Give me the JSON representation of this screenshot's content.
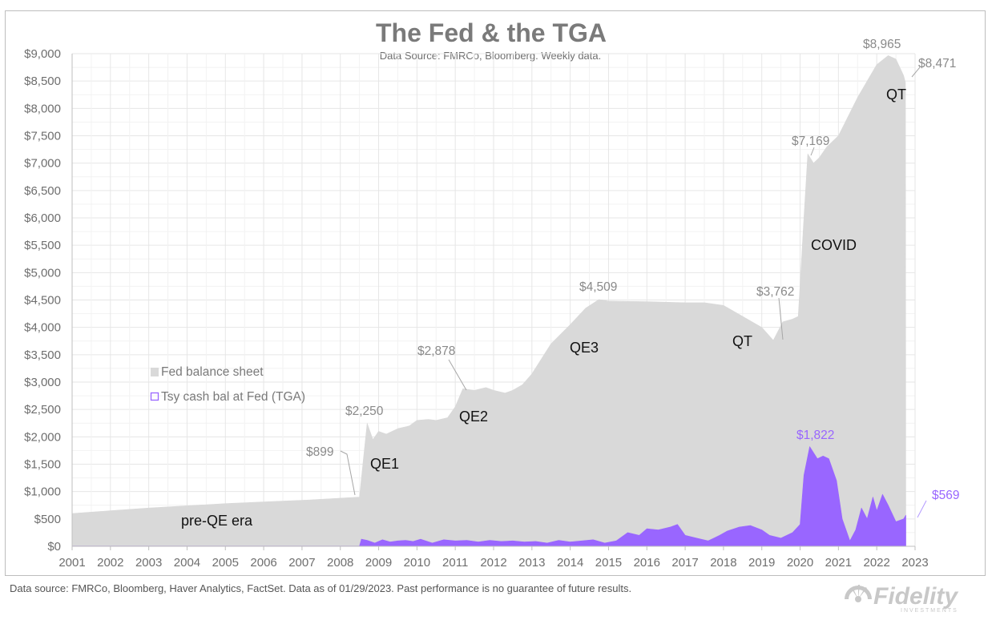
{
  "chart_data": {
    "type": "area",
    "title": "The Fed & the TGA",
    "subtitle": "Data Source: FMRCo, Bloomberg.   Weekly data.",
    "xlabel": "",
    "ylabel": "",
    "xlim": [
      2001,
      2023
    ],
    "ylim": [
      0,
      9000
    ],
    "x_ticks": [
      "2001",
      "2002",
      "2003",
      "2004",
      "2005",
      "2006",
      "2007",
      "2008",
      "2009",
      "2010",
      "2011",
      "2012",
      "2013",
      "2014",
      "2015",
      "2016",
      "2017",
      "2018",
      "2019",
      "2020",
      "2021",
      "2022",
      "2023"
    ],
    "y_ticks": [
      "$0",
      "$500",
      "$1,000",
      "$1,500",
      "$2,000",
      "$2,500",
      "$3,000",
      "$3,500",
      "$4,000",
      "$4,500",
      "$5,000",
      "$5,500",
      "$6,000",
      "$6,500",
      "$7,000",
      "$7,500",
      "$8,000",
      "$8,500",
      "$9,000"
    ],
    "grid": true,
    "legend_position": "center-left",
    "series": [
      {
        "name": "Fed balance sheet",
        "color": "#d9d9d9",
        "x": [
          2001.0,
          2002.0,
          2003.0,
          2004.0,
          2005.0,
          2006.0,
          2007.0,
          2008.0,
          2008.5,
          2008.7,
          2008.85,
          2009.0,
          2009.2,
          2009.5,
          2009.8,
          2010.0,
          2010.3,
          2010.5,
          2010.8,
          2011.0,
          2011.2,
          2011.5,
          2011.8,
          2012.0,
          2012.3,
          2012.5,
          2012.75,
          2013.0,
          2013.5,
          2014.0,
          2014.4,
          2014.75,
          2015.0,
          2016.0,
          2017.0,
          2017.5,
          2018.0,
          2018.5,
          2019.0,
          2019.3,
          2019.55,
          2019.8,
          2019.95,
          2020.1,
          2020.2,
          2020.35,
          2020.5,
          2020.7,
          2021.0,
          2021.5,
          2022.0,
          2022.3,
          2022.5,
          2022.7,
          2022.75,
          2022.76
        ],
        "values": [
          600,
          650,
          700,
          740,
          780,
          810,
          840,
          880,
          899,
          2250,
          1950,
          2100,
          2050,
          2150,
          2200,
          2300,
          2320,
          2300,
          2350,
          2550,
          2878,
          2850,
          2900,
          2850,
          2800,
          2850,
          2950,
          3150,
          3700,
          4050,
          4350,
          4509,
          4480,
          4470,
          4450,
          4450,
          4400,
          4200,
          4000,
          3762,
          4100,
          4150,
          4200,
          6000,
          7169,
          7000,
          7100,
          7300,
          7500,
          8200,
          8800,
          8965,
          8900,
          8600,
          8471,
          0
        ]
      },
      {
        "name": "Tsy cash bal at Fed (TGA)",
        "color": "#9966ff",
        "x": [
          2001.0,
          2008.5,
          2008.55,
          2008.7,
          2008.9,
          2009.1,
          2009.3,
          2009.5,
          2009.7,
          2009.9,
          2010.1,
          2010.4,
          2010.7,
          2011.0,
          2011.3,
          2011.6,
          2011.9,
          2012.2,
          2012.5,
          2012.8,
          2013.1,
          2013.4,
          2013.7,
          2014.0,
          2014.3,
          2014.6,
          2014.9,
          2015.2,
          2015.5,
          2015.8,
          2016.0,
          2016.3,
          2016.6,
          2016.8,
          2017.0,
          2017.3,
          2017.6,
          2017.9,
          2018.1,
          2018.4,
          2018.7,
          2019.0,
          2019.2,
          2019.5,
          2019.8,
          2020.0,
          2020.1,
          2020.25,
          2020.45,
          2020.6,
          2020.75,
          2020.95,
          2021.1,
          2021.3,
          2021.45,
          2021.6,
          2021.75,
          2021.9,
          2022.0,
          2022.15,
          2022.3,
          2022.5,
          2022.7,
          2022.76
        ],
        "values": [
          5,
          5,
          130,
          110,
          60,
          120,
          80,
          100,
          110,
          90,
          130,
          60,
          120,
          100,
          110,
          80,
          110,
          90,
          100,
          80,
          90,
          60,
          110,
          80,
          100,
          120,
          60,
          100,
          250,
          200,
          320,
          300,
          350,
          400,
          200,
          150,
          100,
          200,
          280,
          350,
          380,
          300,
          200,
          150,
          250,
          400,
          1300,
          1822,
          1600,
          1650,
          1600,
          1200,
          500,
          100,
          300,
          700,
          500,
          900,
          650,
          950,
          750,
          450,
          500,
          569
        ]
      }
    ],
    "annotations": {
      "fed": [
        "$899",
        "$2,250",
        "$2,878",
        "$4,509",
        "$3,762",
        "$7,169",
        "$8,965",
        "$8,471"
      ],
      "tga": [
        "$1,822",
        "$569"
      ],
      "phases": [
        "pre-QE era",
        "QE1",
        "QE2",
        "QE3",
        "QT",
        "COVID",
        "QT"
      ]
    },
    "footer": "Data source: FMRCo, Bloomberg, Haver Analytics, FactSet. Data as of 01/29/2023. Past performance is no guarantee of future results.",
    "logo": {
      "name": "fidelity-logo",
      "wordmark": "Fidelity",
      "tagline": "INVESTMENTS",
      "color": "#c8c8c8"
    }
  }
}
